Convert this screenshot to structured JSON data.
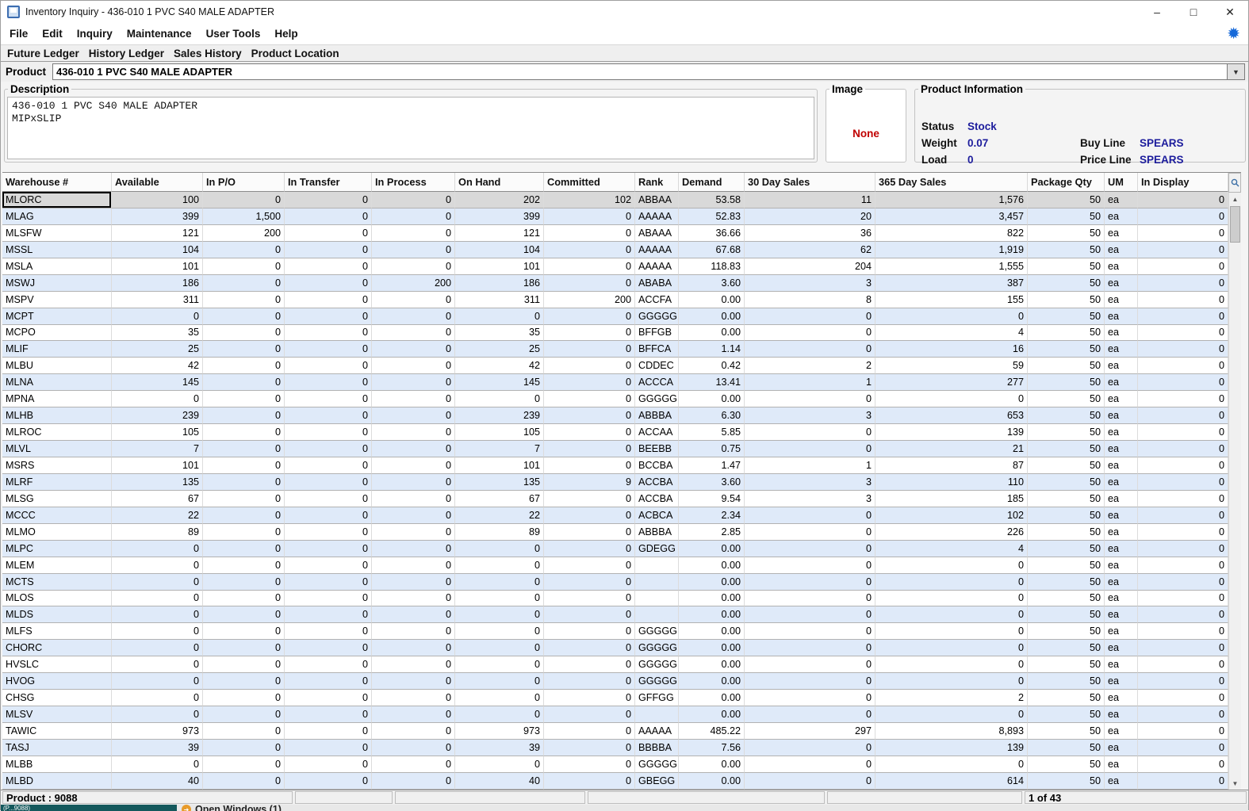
{
  "window": {
    "title": "Inventory Inquiry - 436-010 1 PVC S40 MALE ADAPTER",
    "controls": [
      "–",
      "□",
      "✕"
    ]
  },
  "menu": {
    "items": [
      "File",
      "Edit",
      "Inquiry",
      "Maintenance",
      "User Tools",
      "Help"
    ]
  },
  "tabs": {
    "items": [
      "Future Ledger",
      "History Ledger",
      "Sales History",
      "Product Location"
    ]
  },
  "product": {
    "label": "Product",
    "value": "436-010 1 PVC S40 MALE ADAPTER",
    "dropdown_glyph": "▼"
  },
  "description": {
    "legend": "Description",
    "lines": [
      "436-010 1 PVC S40 MALE ADAPTER",
      "MIPxSLIP"
    ]
  },
  "image": {
    "legend": "Image",
    "value": "None"
  },
  "product_info": {
    "legend": "Product Information",
    "left_fields": [
      {
        "label": "Status",
        "value": "Stock"
      },
      {
        "label": "Weight",
        "value": "0.07"
      },
      {
        "label": "Load",
        "value": "0"
      }
    ],
    "right_fields": [
      {
        "label": "Buy Line",
        "value": "SPEARS"
      },
      {
        "label": "Price Line",
        "value": "SPEARS"
      }
    ]
  },
  "table": {
    "headers": [
      "Warehouse #",
      "Available",
      "In P/O",
      "In Transfer",
      "In Process",
      "On Hand",
      "Committed",
      "Rank",
      "Demand",
      "30 Day Sales",
      "365 Day Sales",
      "Package Qty",
      "UM",
      "In Display"
    ],
    "selected_row_index": 0,
    "rows": [
      [
        "MLORC",
        "100",
        "0",
        "0",
        "0",
        "202",
        "102",
        "ABBAA",
        "53.58",
        "11",
        "1,576",
        "50",
        "ea",
        "0"
      ],
      [
        "MLAG",
        "399",
        "1,500",
        "0",
        "0",
        "399",
        "0",
        "AAAAA",
        "52.83",
        "20",
        "3,457",
        "50",
        "ea",
        "0"
      ],
      [
        "MLSFW",
        "121",
        "200",
        "0",
        "0",
        "121",
        "0",
        "ABAAA",
        "36.66",
        "36",
        "822",
        "50",
        "ea",
        "0"
      ],
      [
        "MSSL",
        "104",
        "0",
        "0",
        "0",
        "104",
        "0",
        "AAAAA",
        "67.68",
        "62",
        "1,919",
        "50",
        "ea",
        "0"
      ],
      [
        "MSLA",
        "101",
        "0",
        "0",
        "0",
        "101",
        "0",
        "AAAAA",
        "118.83",
        "204",
        "1,555",
        "50",
        "ea",
        "0"
      ],
      [
        "MSWJ",
        "186",
        "0",
        "0",
        "200",
        "186",
        "0",
        "ABABA",
        "3.60",
        "3",
        "387",
        "50",
        "ea",
        "0"
      ],
      [
        "MSPV",
        "311",
        "0",
        "0",
        "0",
        "311",
        "200",
        "ACCFA",
        "0.00",
        "8",
        "155",
        "50",
        "ea",
        "0"
      ],
      [
        "MCPT",
        "0",
        "0",
        "0",
        "0",
        "0",
        "0",
        "GGGGG",
        "0.00",
        "0",
        "0",
        "50",
        "ea",
        "0"
      ],
      [
        "MCPO",
        "35",
        "0",
        "0",
        "0",
        "35",
        "0",
        "BFFGB",
        "0.00",
        "0",
        "4",
        "50",
        "ea",
        "0"
      ],
      [
        "MLIF",
        "25",
        "0",
        "0",
        "0",
        "25",
        "0",
        "BFFCA",
        "1.14",
        "0",
        "16",
        "50",
        "ea",
        "0"
      ],
      [
        "MLBU",
        "42",
        "0",
        "0",
        "0",
        "42",
        "0",
        "CDDEC",
        "0.42",
        "2",
        "59",
        "50",
        "ea",
        "0"
      ],
      [
        "MLNA",
        "145",
        "0",
        "0",
        "0",
        "145",
        "0",
        "ACCCA",
        "13.41",
        "1",
        "277",
        "50",
        "ea",
        "0"
      ],
      [
        "MPNA",
        "0",
        "0",
        "0",
        "0",
        "0",
        "0",
        "GGGGG",
        "0.00",
        "0",
        "0",
        "50",
        "ea",
        "0"
      ],
      [
        "MLHB",
        "239",
        "0",
        "0",
        "0",
        "239",
        "0",
        "ABBBA",
        "6.30",
        "3",
        "653",
        "50",
        "ea",
        "0"
      ],
      [
        "MLROC",
        "105",
        "0",
        "0",
        "0",
        "105",
        "0",
        "ACCAA",
        "5.85",
        "0",
        "139",
        "50",
        "ea",
        "0"
      ],
      [
        "MLVL",
        "7",
        "0",
        "0",
        "0",
        "7",
        "0",
        "BEEBB",
        "0.75",
        "0",
        "21",
        "50",
        "ea",
        "0"
      ],
      [
        "MSRS",
        "101",
        "0",
        "0",
        "0",
        "101",
        "0",
        "BCCBA",
        "1.47",
        "1",
        "87",
        "50",
        "ea",
        "0"
      ],
      [
        "MLRF",
        "135",
        "0",
        "0",
        "0",
        "135",
        "9",
        "ACCBA",
        "3.60",
        "3",
        "110",
        "50",
        "ea",
        "0"
      ],
      [
        "MLSG",
        "67",
        "0",
        "0",
        "0",
        "67",
        "0",
        "ACCBA",
        "9.54",
        "3",
        "185",
        "50",
        "ea",
        "0"
      ],
      [
        "MCCC",
        "22",
        "0",
        "0",
        "0",
        "22",
        "0",
        "ACBCA",
        "2.34",
        "0",
        "102",
        "50",
        "ea",
        "0"
      ],
      [
        "MLMO",
        "89",
        "0",
        "0",
        "0",
        "89",
        "0",
        "ABBBA",
        "2.85",
        "0",
        "226",
        "50",
        "ea",
        "0"
      ],
      [
        "MLPC",
        "0",
        "0",
        "0",
        "0",
        "0",
        "0",
        "GDEGG",
        "0.00",
        "0",
        "4",
        "50",
        "ea",
        "0"
      ],
      [
        "MLEM",
        "0",
        "0",
        "0",
        "0",
        "0",
        "0",
        "",
        "0.00",
        "0",
        "0",
        "50",
        "ea",
        "0"
      ],
      [
        "MCTS",
        "0",
        "0",
        "0",
        "0",
        "0",
        "0",
        "",
        "0.00",
        "0",
        "0",
        "50",
        "ea",
        "0"
      ],
      [
        "MLOS",
        "0",
        "0",
        "0",
        "0",
        "0",
        "0",
        "",
        "0.00",
        "0",
        "0",
        "50",
        "ea",
        "0"
      ],
      [
        "MLDS",
        "0",
        "0",
        "0",
        "0",
        "0",
        "0",
        "",
        "0.00",
        "0",
        "0",
        "50",
        "ea",
        "0"
      ],
      [
        "MLFS",
        "0",
        "0",
        "0",
        "0",
        "0",
        "0",
        "GGGGG",
        "0.00",
        "0",
        "0",
        "50",
        "ea",
        "0"
      ],
      [
        "CHORC",
        "0",
        "0",
        "0",
        "0",
        "0",
        "0",
        "GGGGG",
        "0.00",
        "0",
        "0",
        "50",
        "ea",
        "0"
      ],
      [
        "HVSLC",
        "0",
        "0",
        "0",
        "0",
        "0",
        "0",
        "GGGGG",
        "0.00",
        "0",
        "0",
        "50",
        "ea",
        "0"
      ],
      [
        "HVOG",
        "0",
        "0",
        "0",
        "0",
        "0",
        "0",
        "GGGGG",
        "0.00",
        "0",
        "0",
        "50",
        "ea",
        "0"
      ],
      [
        "CHSG",
        "0",
        "0",
        "0",
        "0",
        "0",
        "0",
        "GFFGG",
        "0.00",
        "0",
        "2",
        "50",
        "ea",
        "0"
      ],
      [
        "MLSV",
        "0",
        "0",
        "0",
        "0",
        "0",
        "0",
        "",
        "0.00",
        "0",
        "0",
        "50",
        "ea",
        "0"
      ],
      [
        "TAWIC",
        "973",
        "0",
        "0",
        "0",
        "973",
        "0",
        "AAAAA",
        "485.22",
        "297",
        "8,893",
        "50",
        "ea",
        "0"
      ],
      [
        "TASJ",
        "39",
        "0",
        "0",
        "0",
        "39",
        "0",
        "BBBBA",
        "7.56",
        "0",
        "139",
        "50",
        "ea",
        "0"
      ],
      [
        "MLBB",
        "0",
        "0",
        "0",
        "0",
        "0",
        "0",
        "GGGGG",
        "0.00",
        "0",
        "0",
        "50",
        "ea",
        "0"
      ],
      [
        "MLBD",
        "40",
        "0",
        "0",
        "0",
        "40",
        "0",
        "GBEGG",
        "0.00",
        "0",
        "614",
        "50",
        "ea",
        "0"
      ]
    ]
  },
  "status_bar": {
    "product": "Product : 9088",
    "pager": "1 of 43"
  },
  "taskbar_fragment": {
    "left_text": "(P...9088)",
    "item_text": "Open Windows (1)"
  },
  "colors": {
    "value_navy": "#1c1c9c",
    "none_red": "#c00000",
    "stripe_blue": "#dfeaf9",
    "selected_gray": "#d9d9d9",
    "starburst_blue": "#1669d9",
    "taskbar_teal": "#14585c",
    "taskbar_orange": "#e89b2a"
  }
}
